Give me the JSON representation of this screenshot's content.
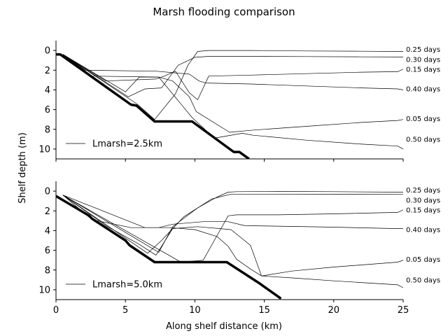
{
  "chart_data": {
    "type": "line",
    "title": "Marsh flooding comparison",
    "xlabel": "Along shelf distance (km)",
    "ylabel": "Shelf depth (m)",
    "xlim": [
      0,
      25
    ],
    "ylim": [
      11,
      -1
    ],
    "y_inverted": true,
    "x_ticks": [
      0,
      5,
      10,
      15,
      20,
      25
    ],
    "y_ticks": [
      0,
      2,
      4,
      6,
      8,
      10
    ],
    "grid": false,
    "legend_placement": "lower-left",
    "colors": {
      "series": "#000000",
      "bathymetry": "#000000"
    },
    "panels": [
      {
        "legend": "Lmarsh=2.5km",
        "bathymetry": {
          "x": [
            0,
            0.3,
            5.4,
            5.8,
            7.1,
            9.8,
            12.8,
            13.2,
            13.9
          ],
          "y": [
            0.4,
            0.4,
            5.5,
            5.6,
            7.2,
            7.2,
            10.3,
            10.3,
            11.0
          ]
        },
        "series": [
          {
            "label": "0.25 days",
            "x": [
              0.5,
              5.9,
              7.1,
              8.6,
              9.5,
              10.2,
              11,
              14,
              18,
              22,
              24.6,
              25
            ],
            "y": [
              0.4,
              5.5,
              7,
              4.4,
              1.5,
              0.1,
              0.0,
              0.0,
              0.05,
              0.08,
              0.1,
              0.1
            ]
          },
          {
            "label": "0.30 days",
            "x": [
              0.5,
              5.2,
              6.4,
              7.6,
              8.8,
              10,
              11,
              14,
              18,
              22,
              24.6,
              25
            ],
            "y": [
              0.4,
              4.7,
              3.9,
              3.8,
              1.5,
              0.7,
              0.6,
              0.6,
              0.62,
              0.65,
              0.66,
              0.66
            ]
          },
          {
            "label": "0.15 days",
            "x": [
              0.5,
              3.6,
              7.2,
              7.8,
              8.6,
              9.6,
              10.2,
              11,
              14,
              18,
              22,
              24.6,
              25
            ],
            "y": [
              0.4,
              3.1,
              2.9,
              2.6,
              2.1,
              4.3,
              5.0,
              2.6,
              2.5,
              2.35,
              2.2,
              2.15,
              1.9
            ]
          },
          {
            "label": "0.40 days",
            "x": [
              0.5,
              2.1,
              7.2,
              9.6,
              10.3,
              10.8,
              14,
              18,
              22,
              24.6,
              25
            ],
            "y": [
              0.4,
              2.0,
              2.1,
              2.4,
              3.1,
              3.3,
              3.4,
              3.6,
              3.8,
              3.9,
              4.0
            ]
          },
          {
            "label": "0.05 days",
            "x": [
              0.5,
              5.0,
              6.0,
              7.4,
              8.4,
              9.6,
              10.1,
              12.5,
              14,
              18,
              22,
              24.6,
              25
            ],
            "y": [
              0.4,
              4.2,
              2.7,
              2.7,
              3.1,
              4.7,
              6.2,
              8.3,
              8.1,
              7.7,
              7.3,
              7.1,
              7.0
            ]
          },
          {
            "label": "0.50 days",
            "x": [
              0.5,
              2.6,
              7.4,
              9.8,
              11.4,
              13.4,
              14.2,
              18,
              22,
              24.6,
              25
            ],
            "y": [
              0.4,
              2.6,
              2.7,
              6.8,
              8.9,
              8.4,
              8.6,
              9.1,
              9.5,
              9.7,
              10.0
            ]
          }
        ],
        "labels": [
          "0.25 days",
          "0.30 days",
          "0.15 days",
          "0.40 days",
          "0.05 days",
          "0.50 days"
        ],
        "label_y": [
          -0.1,
          0.9,
          1.9,
          3.9,
          6.9,
          9.0
        ]
      },
      {
        "legend": "Lmarsh=5.0km",
        "bathymetry": {
          "x": [
            0,
            2.4,
            2.6,
            5.0,
            5.3,
            7.1,
            12.3,
            14.6,
            14.9,
            16.2
          ],
          "y": [
            0.5,
            2.5,
            2.8,
            5.0,
            5.5,
            7.2,
            7.2,
            9.3,
            9.6,
            10.9
          ]
        },
        "series": [
          {
            "label": "0.25 days",
            "x": [
              0.5,
              7.4,
              8.4,
              10.2,
              11.6,
              12.4,
              13,
              16,
              20,
              24.6,
              25
            ],
            "y": [
              0.4,
              6.2,
              3.6,
              1.7,
              0.6,
              0.1,
              0.05,
              0.03,
              0.05,
              0.1,
              0.1
            ]
          },
          {
            "label": "0.30 days",
            "x": [
              0.5,
              6.6,
              7.6,
              9.2,
              11.2,
              12.6,
              13,
              16,
              20,
              24.6,
              25
            ],
            "y": [
              0.4,
              6.3,
              5.0,
              2.6,
              0.8,
              0.3,
              0.3,
              0.3,
              0.31,
              0.33,
              0.33
            ]
          },
          {
            "label": "0.15 days",
            "x": [
              0.5,
              9.0,
              10.6,
              11.6,
              12.4,
              13,
              16,
              20,
              24.6,
              25
            ],
            "y": [
              0.4,
              7.2,
              7.0,
              4.5,
              2.5,
              2.4,
              2.4,
              2.3,
              2.15,
              1.9
            ]
          },
          {
            "label": "0.40 days",
            "x": [
              0.5,
              2.6,
              5.4,
              7.4,
              8.4,
              10.6,
              12.4,
              13.6,
              16,
              20,
              24.6,
              25
            ],
            "y": [
              0.4,
              2.9,
              3.7,
              3.7,
              3.35,
              3.1,
              3.1,
              3.5,
              3.55,
              3.65,
              3.8,
              3.8
            ]
          },
          {
            "label": "0.05 days",
            "x": [
              0.5,
              6.4,
              8.2,
              10,
              11.6,
              12.4,
              13,
              14,
              14.8,
              17,
              20,
              24.6,
              25
            ],
            "y": [
              0.4,
              3.7,
              3.7,
              3.9,
              4.6,
              5.6,
              6.9,
              7.9,
              8.6,
              8.1,
              7.7,
              7.2,
              7.0
            ]
          },
          {
            "label": "0.50 days",
            "x": [
              0.5,
              3.6,
              6.0,
              7.2,
              8.4,
              10.2,
              12.6,
              14,
              14.8,
              17,
              20,
              24.6,
              25
            ],
            "y": [
              0.4,
              3.5,
              5.4,
              6.5,
              3.8,
              3.6,
              3.9,
              5.5,
              8.6,
              8.8,
              9.1,
              9.5,
              9.8
            ]
          }
        ],
        "labels": [
          "0.25 days",
          "0.30 days",
          "0.15 days",
          "0.40 days",
          "0.05 days",
          "0.50 days"
        ],
        "label_y": [
          -0.1,
          0.9,
          1.9,
          3.9,
          6.9,
          9.0
        ]
      }
    ]
  }
}
